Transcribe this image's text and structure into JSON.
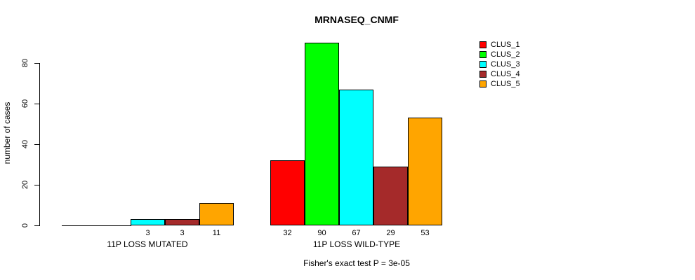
{
  "chart_data": {
    "type": "bar",
    "title": "MRNASEQ_CNMF",
    "ylabel": "number of cases",
    "xlabel": "",
    "ylim": [
      0,
      90
    ],
    "yticks": [
      0,
      20,
      40,
      60,
      80
    ],
    "grid": false,
    "legend_position": "top-right",
    "categories": [
      "11P LOSS MUTATED",
      "11P LOSS WILD-TYPE"
    ],
    "series": [
      {
        "name": "CLUS_1",
        "color": "#FF0000",
        "values": [
          0,
          32
        ]
      },
      {
        "name": "CLUS_2",
        "color": "#00FF00",
        "values": [
          0,
          90
        ]
      },
      {
        "name": "CLUS_3",
        "color": "#00FFFF",
        "values": [
          3,
          67
        ]
      },
      {
        "name": "CLUS_4",
        "color": "#A52A2A",
        "values": [
          3,
          29
        ]
      },
      {
        "name": "CLUS_5",
        "color": "#FFA500",
        "values": [
          11,
          53
        ]
      }
    ],
    "bar_value_labels": {
      "11P LOSS MUTATED": [
        "",
        "",
        "3",
        "3",
        "11"
      ],
      "11P LOSS WILD-TYPE": [
        "32",
        "90",
        "67",
        "29",
        "53"
      ]
    },
    "annotation": "Fisher's exact test P = 3e-05"
  }
}
